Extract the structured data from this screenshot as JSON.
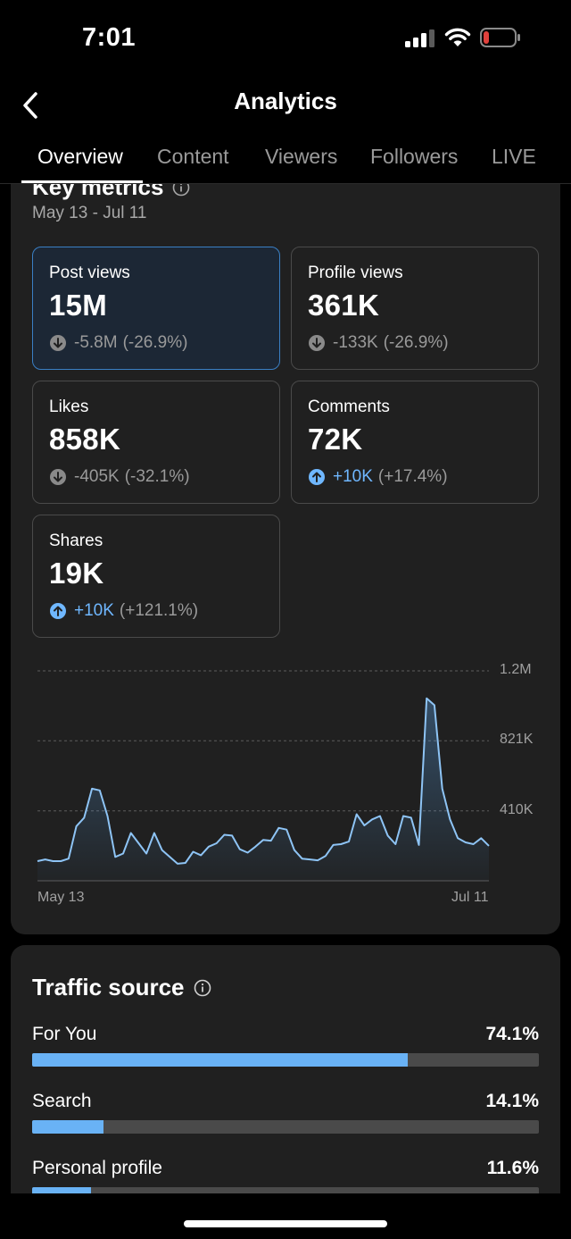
{
  "status_bar": {
    "time": "7:01",
    "battery_color": "#e0413c"
  },
  "header": {
    "title": "Analytics",
    "back_icon": "chevron-left-icon"
  },
  "tabs": [
    {
      "label": "Overview",
      "active": true
    },
    {
      "label": "Content",
      "active": false
    },
    {
      "label": "Viewers",
      "active": false
    },
    {
      "label": "Followers",
      "active": false
    },
    {
      "label": "LIVE",
      "active": false
    }
  ],
  "key_metrics": {
    "title": "Key metrics",
    "date_range": "May 13 - Jul 11",
    "metrics": [
      {
        "label": "Post views",
        "value": "15M",
        "change": "-5.8M",
        "change_pct": "(-26.9%)",
        "direction": "down",
        "selected": true
      },
      {
        "label": "Profile views",
        "value": "361K",
        "change": "-133K",
        "change_pct": "(-26.9%)",
        "direction": "down",
        "selected": false
      },
      {
        "label": "Likes",
        "value": "858K",
        "change": "-405K",
        "change_pct": "(-32.1%)",
        "direction": "down",
        "selected": false
      },
      {
        "label": "Comments",
        "value": "72K",
        "change": "+10K",
        "change_pct": "(+17.4%)",
        "direction": "up",
        "selected": false
      },
      {
        "label": "Shares",
        "value": "19K",
        "change": "+10K",
        "change_pct": "(+121.1%)",
        "direction": "up",
        "selected": false
      }
    ]
  },
  "chart_data": {
    "type": "area",
    "title": "Post views",
    "y_ticks": [
      "1.2M",
      "821K",
      "410K"
    ],
    "y_tick_values": [
      1231000,
      821000,
      410000
    ],
    "ylim": [
      0,
      1231000
    ],
    "x_labels": [
      "May 13",
      "Jul 11"
    ],
    "line_color": "#8ec4f5",
    "values": [
      115000,
      125000,
      115000,
      115000,
      130000,
      320000,
      370000,
      540000,
      530000,
      380000,
      140000,
      160000,
      280000,
      220000,
      160000,
      280000,
      180000,
      140000,
      100000,
      105000,
      170000,
      150000,
      200000,
      220000,
      270000,
      265000,
      185000,
      165000,
      200000,
      240000,
      235000,
      310000,
      300000,
      180000,
      130000,
      125000,
      120000,
      145000,
      210000,
      215000,
      230000,
      390000,
      325000,
      360000,
      380000,
      265000,
      215000,
      380000,
      370000,
      210000,
      1070000,
      1030000,
      540000,
      360000,
      250000,
      225000,
      215000,
      250000,
      205000
    ]
  },
  "traffic_source": {
    "title": "Traffic source",
    "accent": "#69b2f5",
    "items": [
      {
        "label": "For You",
        "pct_text": "74.1%",
        "pct": 74.1
      },
      {
        "label": "Search",
        "pct_text": "14.1%",
        "pct": 14.1
      },
      {
        "label": "Personal profile",
        "pct_text": "11.6%",
        "pct": 11.6
      }
    ]
  }
}
